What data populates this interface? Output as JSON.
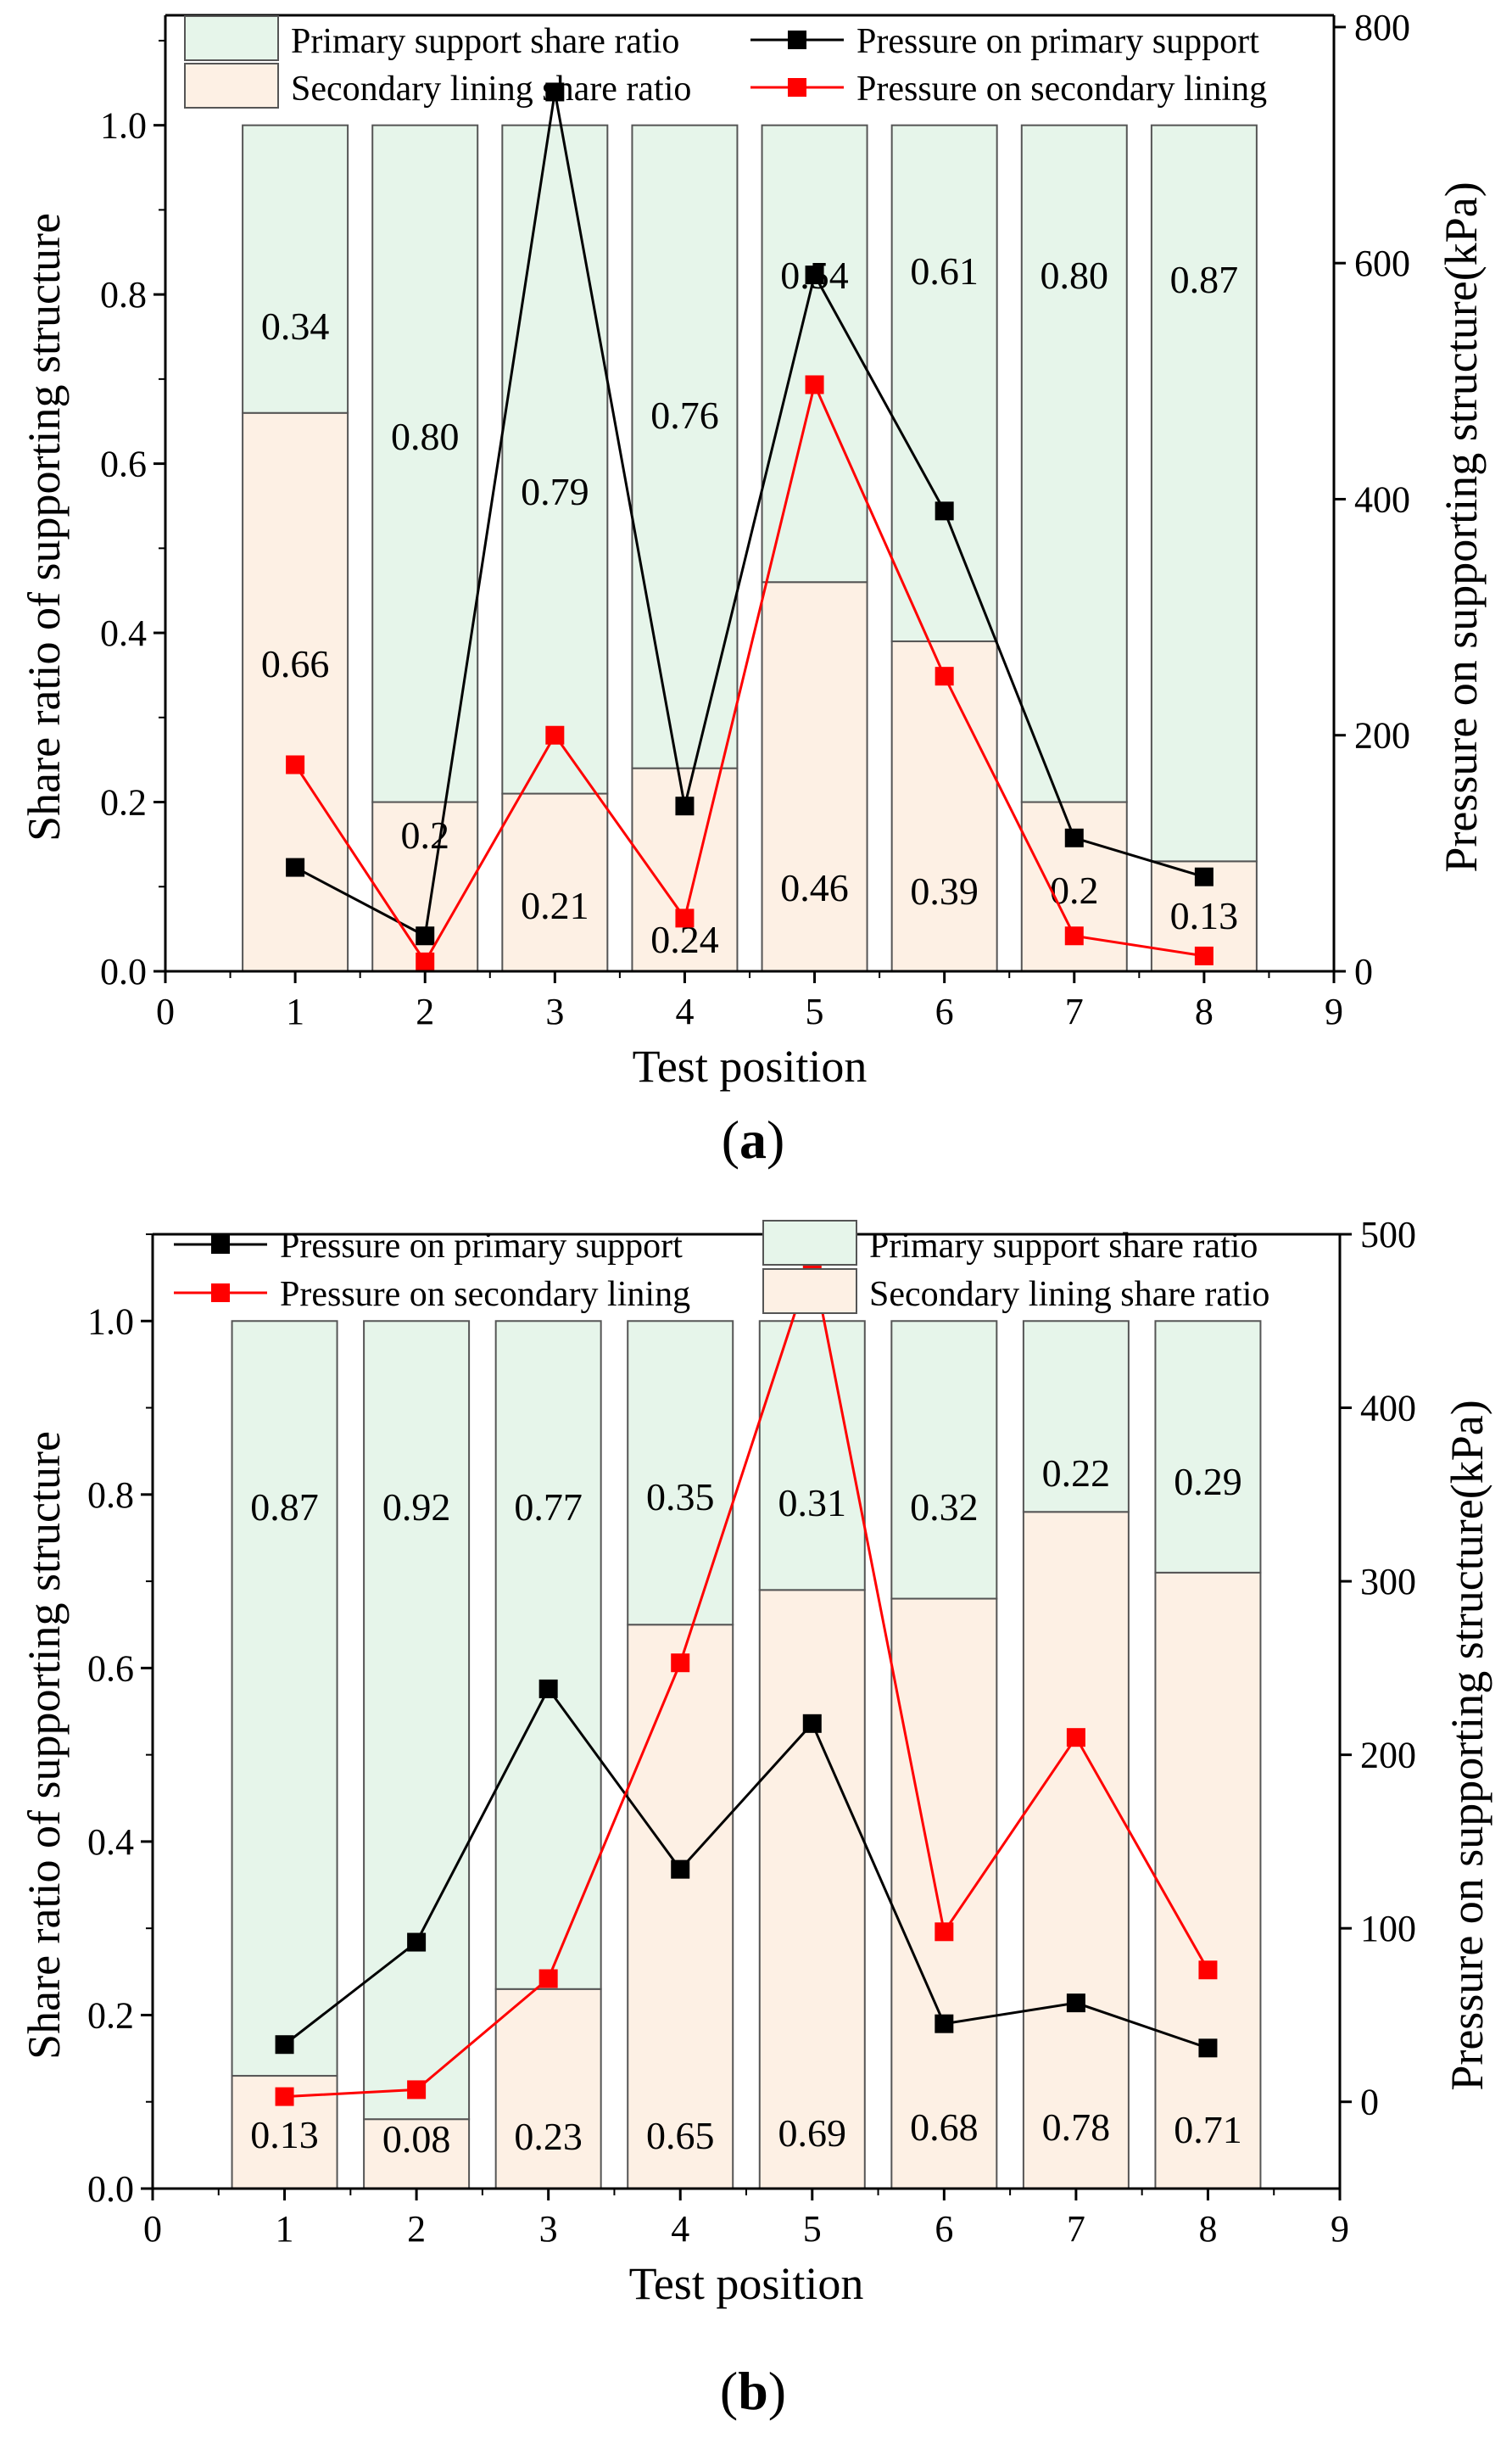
{
  "figure_labels": {
    "a": "a",
    "b": "b"
  },
  "colors": {
    "primary_fill": "#e6f5ea",
    "secondary_fill": "#fdf0e4",
    "bar_stroke": "#555555",
    "primary_pressure_line": "#000000",
    "secondary_pressure_line": "#ff0000"
  },
  "chart_data": [
    {
      "id": "a",
      "type": "bar",
      "xlabel": "Test position",
      "ylabel": "Share ratio of supporting structure",
      "y2label": "Pressure on supporting structure(kPa)",
      "xlim": [
        0,
        9
      ],
      "xticks": [
        "0",
        "1",
        "2",
        "3",
        "4",
        "5",
        "6",
        "7",
        "8",
        "9"
      ],
      "ylim": [
        0,
        1.13
      ],
      "yticks": [
        "0.0",
        "0.2",
        "0.4",
        "0.6",
        "0.8",
        "1.0"
      ],
      "y2lim": [
        0,
        810
      ],
      "y2ticks": [
        "0",
        "200",
        "400",
        "600",
        "800"
      ],
      "categories": [
        1,
        2,
        3,
        4,
        5,
        6,
        7,
        8
      ],
      "legend": {
        "primary_share": "Primary support share ratio",
        "secondary_share": "Secondary lining share ratio",
        "primary_pressure": "Pressure on primary support",
        "secondary_pressure": "Pressure on secondary lining"
      },
      "series": [
        {
          "name": "Secondary lining share ratio",
          "kind": "bar-bottom",
          "values": [
            0.66,
            0.2,
            0.21,
            0.24,
            0.46,
            0.39,
            0.2,
            0.13
          ],
          "labels": [
            "0.66",
            "0.2",
            "0.21",
            "0.24",
            "0.46",
            "0.39",
            "0.2",
            "0.13"
          ]
        },
        {
          "name": "Primary support share ratio",
          "kind": "bar-top",
          "values": [
            0.34,
            0.8,
            0.79,
            0.76,
            0.54,
            0.61,
            0.8,
            0.87
          ],
          "labels": [
            "0.34",
            "0.80",
            "0.79",
            "0.76",
            "0.54",
            "0.61",
            "0.80",
            "0.87"
          ]
        },
        {
          "name": "Pressure on primary support",
          "kind": "line",
          "axis": "right",
          "values": [
            88,
            30,
            745,
            140,
            590,
            390,
            113,
            80
          ]
        },
        {
          "name": "Pressure on secondary lining",
          "kind": "line",
          "axis": "right",
          "values": [
            175,
            8,
            200,
            45,
            497,
            250,
            30,
            13
          ]
        }
      ]
    },
    {
      "id": "b",
      "type": "bar",
      "xlabel": "Test position",
      "ylabel": "Share ratio of supporting structure",
      "y2label": "Pressure on supporting structure(kPa)",
      "xlim": [
        0,
        9
      ],
      "xticks": [
        "0",
        "1",
        "2",
        "3",
        "4",
        "5",
        "6",
        "7",
        "8",
        "9"
      ],
      "ylim": [
        0,
        1.1
      ],
      "yticks": [
        "0.0",
        "0.2",
        "0.4",
        "0.6",
        "0.8",
        "1.0"
      ],
      "y2lim": [
        -50,
        500
      ],
      "y2ticks": [
        "0",
        "100",
        "200",
        "300",
        "400",
        "500"
      ],
      "categories": [
        1,
        2,
        3,
        4,
        5,
        6,
        7,
        8
      ],
      "legend": {
        "primary_pressure": "Pressure on primary support",
        "secondary_pressure": "Pressure on secondary lining",
        "primary_share": "Primary support share ratio",
        "secondary_share": "Secondary lining share ratio"
      },
      "series": [
        {
          "name": "Secondary lining share ratio",
          "kind": "bar-bottom",
          "values": [
            0.13,
            0.08,
            0.23,
            0.65,
            0.69,
            0.68,
            0.78,
            0.71
          ],
          "labels": [
            "0.13",
            "0.08",
            "0.23",
            "0.65",
            "0.69",
            "0.68",
            "0.78",
            "0.71"
          ]
        },
        {
          "name": "Primary support share ratio",
          "kind": "bar-top",
          "values": [
            0.87,
            0.92,
            0.77,
            0.35,
            0.31,
            0.32,
            0.22,
            0.29
          ],
          "labels": [
            "0.87",
            "0.92",
            "0.77",
            "0.35",
            "0.31",
            "0.32",
            "0.22",
            "0.29"
          ]
        },
        {
          "name": "Pressure on primary support",
          "kind": "line",
          "axis": "right",
          "values": [
            33,
            92,
            238,
            134,
            218,
            45,
            57,
            31
          ]
        },
        {
          "name": "Pressure on secondary lining",
          "kind": "line",
          "axis": "right",
          "values": [
            3,
            7,
            71,
            253,
            485,
            98,
            210,
            76
          ]
        }
      ]
    }
  ]
}
